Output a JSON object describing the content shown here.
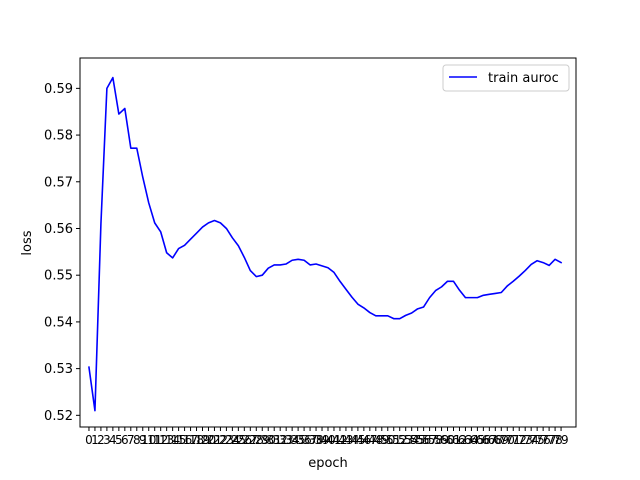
{
  "chart_data": {
    "type": "line",
    "title": "",
    "xlabel": "epoch",
    "ylabel": "loss",
    "legend_position": "top-right",
    "grid": false,
    "xlim": [
      -1.5,
      81.5
    ],
    "ylim": [
      0.5175,
      0.5965
    ],
    "x": [
      0,
      1,
      2,
      3,
      4,
      5,
      6,
      7,
      8,
      9,
      10,
      11,
      12,
      13,
      14,
      15,
      16,
      17,
      18,
      19,
      20,
      21,
      22,
      23,
      24,
      25,
      26,
      27,
      28,
      29,
      30,
      31,
      32,
      33,
      34,
      35,
      36,
      37,
      38,
      39,
      40,
      41,
      42,
      43,
      44,
      45,
      46,
      47,
      48,
      49,
      50,
      51,
      52,
      53,
      54,
      55,
      56,
      57,
      58,
      59,
      60,
      61,
      62,
      63,
      64,
      65,
      66,
      67,
      68,
      69,
      70,
      71,
      72,
      73,
      74,
      75,
      76,
      77,
      78,
      79
    ],
    "xtick_labels": [
      "0",
      "1",
      "2",
      "3",
      "4",
      "5",
      "6",
      "7",
      "8",
      "9",
      "10",
      "11",
      "12",
      "13",
      "14",
      "15",
      "16",
      "17",
      "18",
      "19",
      "20",
      "21",
      "22",
      "23",
      "24",
      "25",
      "26",
      "27",
      "28",
      "29",
      "30",
      "31",
      "32",
      "33",
      "34",
      "35",
      "36",
      "37",
      "38",
      "39",
      "40",
      "41",
      "42",
      "43",
      "44",
      "45",
      "46",
      "47",
      "48",
      "49",
      "50",
      "51",
      "52",
      "53",
      "54",
      "55",
      "56",
      "57",
      "58",
      "59",
      "60",
      "61",
      "62",
      "63",
      "64",
      "65",
      "66",
      "67",
      "68",
      "69",
      "70",
      "71",
      "72",
      "73",
      "74",
      "75",
      "76",
      "77",
      "78",
      "79"
    ],
    "yticks": [
      0.52,
      0.53,
      0.54,
      0.55,
      0.56,
      0.57,
      0.58,
      0.59
    ],
    "ytick_labels": [
      "0.52",
      "0.53",
      "0.54",
      "0.55",
      "0.56",
      "0.57",
      "0.58",
      "0.59"
    ],
    "series": [
      {
        "name": "train auroc",
        "color": "#0000ff",
        "values": [
          0.5303,
          0.521,
          0.561,
          0.59,
          0.5923,
          0.5845,
          0.5857,
          0.5772,
          0.5772,
          0.571,
          0.5655,
          0.5612,
          0.5593,
          0.5548,
          0.5537,
          0.5557,
          0.5564,
          0.5577,
          0.559,
          0.5603,
          0.5612,
          0.5617,
          0.5612,
          0.56,
          0.558,
          0.5563,
          0.5538,
          0.551,
          0.5497,
          0.55,
          0.5515,
          0.5522,
          0.5522,
          0.5524,
          0.5532,
          0.5534,
          0.5532,
          0.5522,
          0.5524,
          0.552,
          0.5516,
          0.5506,
          0.5487,
          0.547,
          0.5453,
          0.5438,
          0.543,
          0.542,
          0.5413,
          0.5413,
          0.5413,
          0.5407,
          0.5407,
          0.5414,
          0.5419,
          0.5428,
          0.5432,
          0.5452,
          0.5467,
          0.5475,
          0.5487,
          0.5487,
          0.5468,
          0.5452,
          0.5452,
          0.5452,
          0.5457,
          0.5459,
          0.5461,
          0.5463,
          0.5477,
          0.5487,
          0.5498,
          0.551,
          0.5523,
          0.5531,
          0.5527,
          0.5521,
          0.5534,
          0.5527
        ]
      }
    ]
  }
}
